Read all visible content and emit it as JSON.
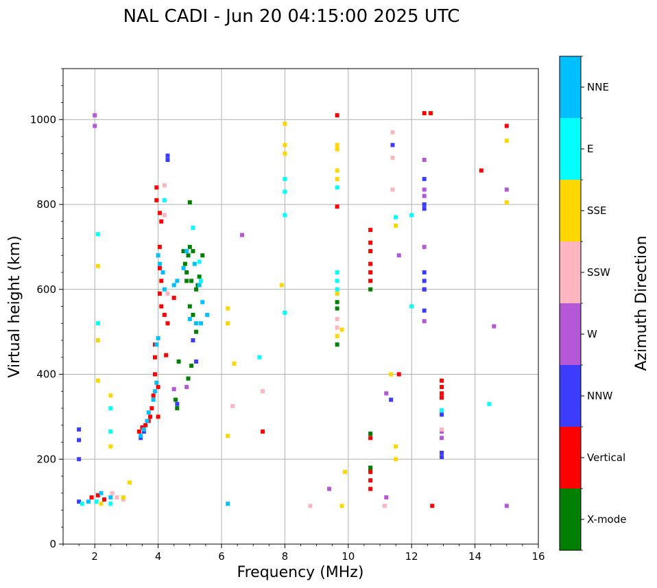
{
  "chart_data": {
    "type": "scatter",
    "title": "NAL CADI - Jun 20 04:15:00 2025 UTC",
    "xlabel": "Frequency (MHz)",
    "ylabel": "Virtual height (km)",
    "xlim": [
      1,
      16
    ],
    "ylim": [
      0,
      1120
    ],
    "xticks": [
      "2",
      "4",
      "6",
      "8",
      "10",
      "12",
      "14",
      "16"
    ],
    "yticks": [
      "0",
      "200",
      "400",
      "600",
      "800",
      "1000"
    ],
    "grid": true,
    "colorbar": {
      "label": "Azimuth Direction",
      "categories": [
        "X-mode",
        "Vertical",
        "NNW",
        "W",
        "SSW",
        "SSE",
        "E",
        "NNE"
      ],
      "colors": [
        "#008000",
        "#ff0000",
        "#3c3cff",
        "#b558d8",
        "#ffb6c1",
        "#ffd700",
        "#00ffff",
        "#00bfff"
      ]
    },
    "series": [
      {
        "name": "X-mode",
        "color": "#008000",
        "points": [
          [
            4.95,
            680
          ],
          [
            5.0,
            700
          ],
          [
            4.85,
            660
          ],
          [
            4.9,
            640
          ],
          [
            5.05,
            620
          ],
          [
            5.2,
            600
          ],
          [
            5.3,
            630
          ],
          [
            5.1,
            690
          ],
          [
            4.8,
            690
          ],
          [
            5.4,
            680
          ],
          [
            5.0,
            560
          ],
          [
            5.1,
            540
          ],
          [
            5.2,
            500
          ],
          [
            5.05,
            420
          ],
          [
            4.95,
            390
          ],
          [
            4.55,
            340
          ],
          [
            4.6,
            320
          ],
          [
            4.65,
            430
          ],
          [
            5.0,
            805
          ],
          [
            9.65,
            570
          ],
          [
            9.65,
            555
          ],
          [
            9.65,
            470
          ],
          [
            10.7,
            600
          ],
          [
            10.7,
            180
          ],
          [
            10.7,
            175
          ],
          [
            10.7,
            260
          ],
          [
            5.25,
            610
          ],
          [
            4.9,
            620
          ]
        ]
      },
      {
        "name": "Vertical",
        "color": "#ff0000",
        "points": [
          [
            3.9,
            470
          ],
          [
            3.9,
            440
          ],
          [
            3.9,
            400
          ],
          [
            3.85,
            350
          ],
          [
            3.8,
            320
          ],
          [
            3.75,
            300
          ],
          [
            3.7,
            290
          ],
          [
            3.6,
            280
          ],
          [
            3.5,
            275
          ],
          [
            3.4,
            265
          ],
          [
            3.95,
            840
          ],
          [
            3.95,
            810
          ],
          [
            4.05,
            780
          ],
          [
            4.1,
            760
          ],
          [
            4.05,
            700
          ],
          [
            4.05,
            650
          ],
          [
            4.1,
            620
          ],
          [
            4.05,
            590
          ],
          [
            4.1,
            560
          ],
          [
            4.2,
            540
          ],
          [
            4.25,
            445
          ],
          [
            4.0,
            370
          ],
          [
            4.0,
            300
          ],
          [
            7.3,
            265
          ],
          [
            9.65,
            1010
          ],
          [
            9.65,
            795
          ],
          [
            10.7,
            740
          ],
          [
            10.7,
            710
          ],
          [
            10.7,
            690
          ],
          [
            10.7,
            660
          ],
          [
            10.7,
            640
          ],
          [
            10.7,
            620
          ],
          [
            10.7,
            250
          ],
          [
            10.7,
            170
          ],
          [
            10.7,
            150
          ],
          [
            10.7,
            130
          ],
          [
            11.6,
            400
          ],
          [
            12.4,
            1015
          ],
          [
            12.6,
            1015
          ],
          [
            12.4,
            600
          ],
          [
            12.95,
            385
          ],
          [
            12.95,
            370
          ],
          [
            12.95,
            355
          ],
          [
            12.95,
            345
          ],
          [
            14.2,
            880
          ],
          [
            15.0,
            985
          ],
          [
            12.65,
            90
          ],
          [
            1.9,
            110
          ],
          [
            2.1,
            115
          ],
          [
            2.3,
            105
          ],
          [
            4.3,
            520
          ],
          [
            4.5,
            580
          ]
        ]
      },
      {
        "name": "NNW",
        "color": "#3c3cff",
        "points": [
          [
            1.5,
            270
          ],
          [
            1.5,
            245
          ],
          [
            1.5,
            200
          ],
          [
            1.5,
            100
          ],
          [
            3.45,
            250
          ],
          [
            3.55,
            265
          ],
          [
            4.3,
            915
          ],
          [
            4.3,
            905
          ],
          [
            11.4,
            940
          ],
          [
            12.4,
            860
          ],
          [
            12.4,
            800
          ],
          [
            12.4,
            790
          ],
          [
            12.4,
            640
          ],
          [
            12.4,
            620
          ],
          [
            12.4,
            600
          ],
          [
            12.4,
            550
          ],
          [
            11.35,
            340
          ],
          [
            12.95,
            305
          ],
          [
            12.95,
            215
          ],
          [
            12.95,
            205
          ],
          [
            5.1,
            480
          ],
          [
            5.2,
            430
          ],
          [
            4.6,
            330
          ]
        ]
      },
      {
        "name": "W",
        "color": "#b558d8",
        "points": [
          [
            2.0,
            1010
          ],
          [
            2.0,
            985
          ],
          [
            6.65,
            728
          ],
          [
            9.4,
            130
          ],
          [
            11.2,
            355
          ],
          [
            11.6,
            680
          ],
          [
            12.4,
            905
          ],
          [
            12.4,
            835
          ],
          [
            12.4,
            820
          ],
          [
            12.4,
            700
          ],
          [
            12.4,
            525
          ],
          [
            12.95,
            265
          ],
          [
            12.95,
            250
          ],
          [
            14.6,
            513
          ],
          [
            15.0,
            835
          ],
          [
            15.0,
            90
          ],
          [
            4.9,
            370
          ],
          [
            4.5,
            365
          ],
          [
            11.2,
            110
          ]
        ]
      },
      {
        "name": "SSW",
        "color": "#ffb6c1",
        "points": [
          [
            4.2,
            845
          ],
          [
            4.2,
            775
          ],
          [
            4.3,
            590
          ],
          [
            9.65,
            530
          ],
          [
            9.65,
            510
          ],
          [
            8.8,
            90
          ],
          [
            11.15,
            90
          ],
          [
            11.4,
            970
          ],
          [
            11.4,
            910
          ],
          [
            11.4,
            835
          ],
          [
            12.95,
            270
          ],
          [
            6.35,
            325
          ],
          [
            7.3,
            360
          ],
          [
            2.55,
            120
          ],
          [
            2.7,
            110
          ],
          [
            2.9,
            105
          ]
        ]
      },
      {
        "name": "SSE",
        "color": "#ffd700",
        "points": [
          [
            8.0,
            990
          ],
          [
            8.0,
            940
          ],
          [
            8.0,
            920
          ],
          [
            9.65,
            940
          ],
          [
            9.65,
            930
          ],
          [
            9.65,
            880
          ],
          [
            9.65,
            860
          ],
          [
            9.65,
            600
          ],
          [
            9.65,
            590
          ],
          [
            9.65,
            490
          ],
          [
            9.8,
            505
          ],
          [
            6.2,
            555
          ],
          [
            6.2,
            520
          ],
          [
            6.4,
            425
          ],
          [
            6.2,
            255
          ],
          [
            2.5,
            350
          ],
          [
            2.5,
            230
          ],
          [
            2.1,
            385
          ],
          [
            2.1,
            480
          ],
          [
            2.1,
            655
          ],
          [
            11.35,
            400
          ],
          [
            11.5,
            750
          ],
          [
            11.5,
            230
          ],
          [
            11.5,
            200
          ],
          [
            15.0,
            950
          ],
          [
            15.0,
            805
          ],
          [
            9.9,
            170
          ],
          [
            9.8,
            90
          ],
          [
            3.1,
            145
          ],
          [
            2.9,
            110
          ],
          [
            2.2,
            95
          ],
          [
            7.9,
            610
          ]
        ]
      },
      {
        "name": "E",
        "color": "#00ffff",
        "points": [
          [
            8.0,
            830
          ],
          [
            8.0,
            775
          ],
          [
            8.0,
            860
          ],
          [
            9.65,
            840
          ],
          [
            9.65,
            640
          ],
          [
            9.65,
            620
          ],
          [
            9.65,
            600
          ],
          [
            4.2,
            810
          ],
          [
            5.1,
            745
          ],
          [
            5.3,
            665
          ],
          [
            5.35,
            620
          ],
          [
            7.2,
            440
          ],
          [
            11.5,
            770
          ],
          [
            12.0,
            775
          ],
          [
            12.0,
            560
          ],
          [
            2.5,
            320
          ],
          [
            2.5,
            265
          ],
          [
            2.1,
            730
          ],
          [
            2.1,
            520
          ],
          [
            12.95,
            315
          ],
          [
            14.45,
            330
          ],
          [
            8.0,
            545
          ],
          [
            1.6,
            95
          ],
          [
            2.05,
            100
          ],
          [
            2.5,
            95
          ]
        ]
      },
      {
        "name": "NNE",
        "color": "#00bfff",
        "points": [
          [
            4.0,
            485
          ],
          [
            3.95,
            470
          ],
          [
            3.95,
            380
          ],
          [
            3.9,
            360
          ],
          [
            3.85,
            340
          ],
          [
            3.7,
            310
          ],
          [
            3.65,
            290
          ],
          [
            3.55,
            270
          ],
          [
            3.45,
            255
          ],
          [
            4.0,
            680
          ],
          [
            4.05,
            660
          ],
          [
            4.15,
            640
          ],
          [
            4.2,
            600
          ],
          [
            4.5,
            610
          ],
          [
            4.6,
            620
          ],
          [
            4.8,
            650
          ],
          [
            4.9,
            690
          ],
          [
            5.15,
            660
          ],
          [
            5.3,
            610
          ],
          [
            5.4,
            570
          ],
          [
            5.55,
            540
          ],
          [
            5.35,
            520
          ],
          [
            5.2,
            520
          ],
          [
            5.0,
            530
          ],
          [
            6.2,
            95
          ],
          [
            1.8,
            100
          ],
          [
            2.2,
            120
          ],
          [
            2.5,
            110
          ]
        ]
      }
    ]
  }
}
